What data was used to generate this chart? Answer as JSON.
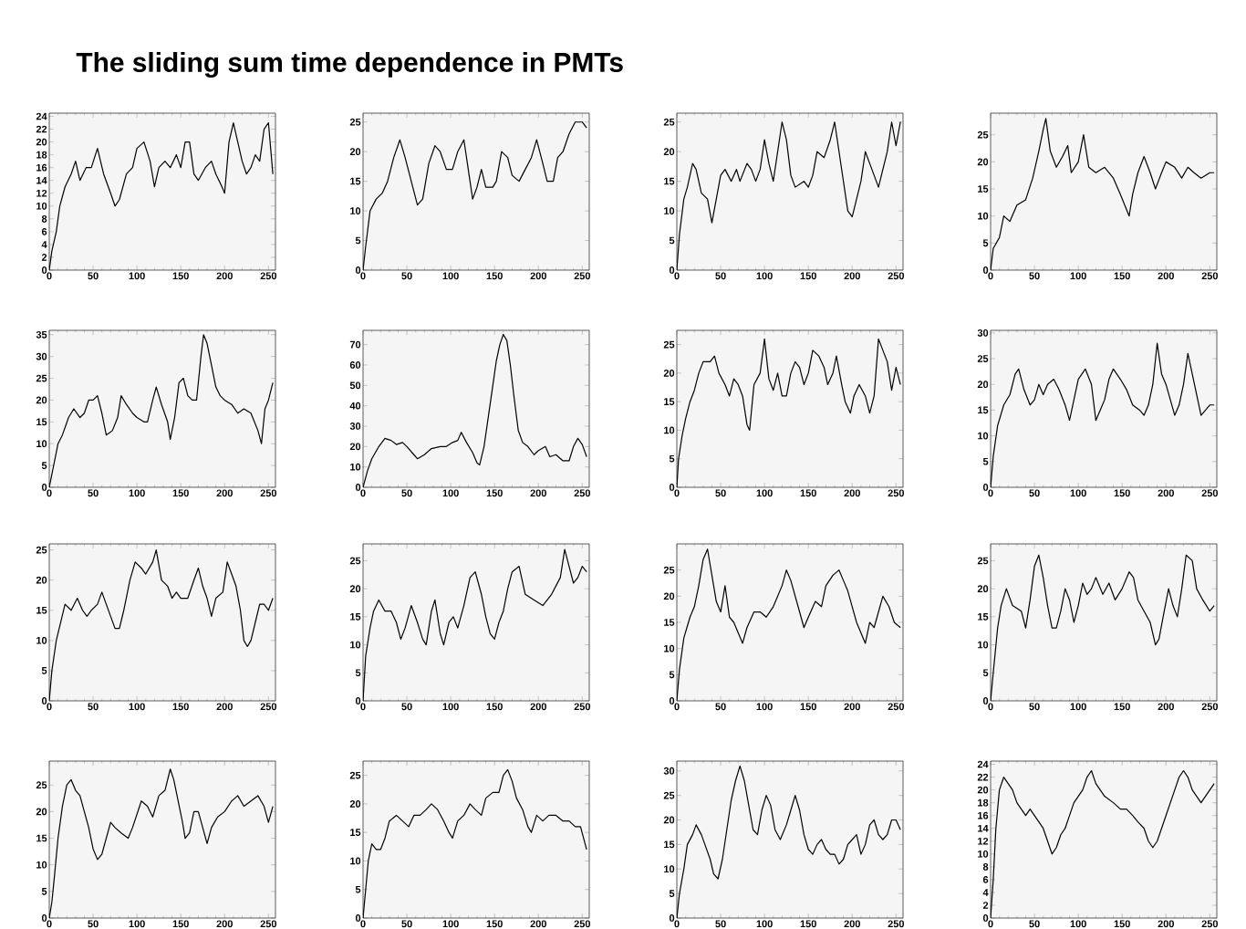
{
  "chart_data": [
    {
      "type": "line",
      "title": "The sliding sum time dependence in  PMTs",
      "color": "#000000",
      "xlim": [
        0,
        258
      ],
      "ylim": [
        0,
        24.5
      ],
      "xticks": [
        0,
        50,
        100,
        150,
        200,
        250
      ],
      "yticks": [
        0,
        2,
        4,
        6,
        8,
        10,
        12,
        14,
        16,
        18,
        20,
        22,
        24
      ],
      "x": [
        0,
        3,
        8,
        12,
        18,
        25,
        30,
        35,
        42,
        48,
        55,
        62,
        70,
        75,
        80,
        88,
        95,
        100,
        108,
        115,
        120,
        125,
        132,
        138,
        145,
        150,
        155,
        160,
        165,
        170,
        178,
        185,
        190,
        197,
        200,
        205,
        210,
        215,
        220,
        225,
        230,
        235,
        240,
        245,
        250,
        255
      ],
      "values": [
        0,
        3,
        6,
        10,
        13,
        15,
        17,
        14,
        16,
        16,
        19,
        15,
        12,
        10,
        11,
        15,
        16,
        19,
        20,
        17,
        13,
        16,
        17,
        16,
        18,
        16,
        20,
        20,
        15,
        14,
        16,
        17,
        15,
        13,
        12,
        20,
        23,
        20,
        17,
        15,
        16,
        18,
        17,
        22,
        23,
        15
      ]
    },
    {
      "type": "line",
      "color": "#000000",
      "xlim": [
        0,
        258
      ],
      "ylim": [
        0,
        26.5
      ],
      "xticks": [
        0,
        50,
        100,
        150,
        200,
        250
      ],
      "yticks": [
        0,
        5,
        10,
        15,
        20,
        25
      ],
      "x": [
        0,
        3,
        8,
        15,
        22,
        28,
        35,
        42,
        48,
        55,
        62,
        68,
        75,
        82,
        88,
        95,
        102,
        108,
        115,
        120,
        125,
        130,
        135,
        140,
        148,
        152,
        158,
        165,
        170,
        178,
        185,
        192,
        198,
        205,
        210,
        217,
        222,
        228,
        235,
        242,
        250,
        255
      ],
      "values": [
        0,
        4,
        10,
        12,
        13,
        15,
        19,
        22,
        19,
        15,
        11,
        12,
        18,
        21,
        20,
        17,
        17,
        20,
        22,
        17,
        12,
        14,
        17,
        14,
        14,
        15,
        20,
        19,
        16,
        15,
        17,
        19,
        22,
        18,
        15,
        15,
        19,
        20,
        23,
        25,
        25,
        24
      ]
    },
    {
      "type": "line",
      "color": "#000000",
      "xlim": [
        0,
        258
      ],
      "ylim": [
        0,
        26.5
      ],
      "xticks": [
        0,
        50,
        100,
        150,
        200,
        250
      ],
      "yticks": [
        0,
        5,
        10,
        15,
        20,
        25
      ],
      "x": [
        0,
        3,
        8,
        12,
        18,
        22,
        28,
        35,
        40,
        45,
        50,
        55,
        62,
        68,
        72,
        80,
        85,
        90,
        95,
        100,
        105,
        110,
        115,
        120,
        125,
        130,
        135,
        145,
        150,
        155,
        160,
        168,
        175,
        180,
        185,
        190,
        195,
        200,
        205,
        210,
        215,
        220,
        225,
        230,
        235,
        240,
        245,
        250,
        255
      ],
      "values": [
        0,
        6,
        12,
        14,
        18,
        17,
        13,
        12,
        8,
        12,
        16,
        17,
        15,
        17,
        15,
        18,
        17,
        15,
        17,
        22,
        18,
        15,
        20,
        25,
        22,
        16,
        14,
        15,
        14,
        16,
        20,
        19,
        22,
        25,
        20,
        15,
        10,
        9,
        12,
        15,
        20,
        18,
        16,
        14,
        17,
        20,
        25,
        21,
        25
      ]
    },
    {
      "type": "line",
      "color": "#000000",
      "xlim": [
        0,
        258
      ],
      "ylim": [
        0,
        29
      ],
      "xticks": [
        0,
        50,
        100,
        150,
        200,
        250
      ],
      "yticks": [
        0,
        5,
        10,
        15,
        20,
        25
      ],
      "x": [
        0,
        3,
        10,
        15,
        22,
        30,
        40,
        48,
        55,
        60,
        63,
        68,
        75,
        82,
        88,
        92,
        100,
        106,
        112,
        120,
        130,
        140,
        148,
        153,
        158,
        162,
        168,
        175,
        182,
        188,
        195,
        200,
        210,
        218,
        225,
        232,
        240,
        250,
        255
      ],
      "values": [
        0,
        4,
        6,
        10,
        9,
        12,
        13,
        17,
        22,
        26,
        28,
        22,
        19,
        21,
        23,
        18,
        20,
        25,
        19,
        18,
        19,
        17,
        14,
        12,
        10,
        14,
        18,
        21,
        18,
        15,
        18,
        20,
        19,
        17,
        19,
        18,
        17,
        18,
        18
      ]
    },
    {
      "type": "line",
      "color": "#000000",
      "xlim": [
        0,
        258
      ],
      "ylim": [
        0,
        36
      ],
      "xticks": [
        0,
        50,
        100,
        150,
        200,
        250
      ],
      "yticks": [
        0,
        5,
        10,
        15,
        20,
        25,
        30,
        35
      ],
      "x": [
        0,
        5,
        10,
        15,
        22,
        28,
        35,
        40,
        45,
        50,
        55,
        60,
        65,
        72,
        78,
        82,
        88,
        95,
        100,
        108,
        112,
        118,
        122,
        128,
        135,
        138,
        143,
        148,
        153,
        158,
        163,
        168,
        173,
        176,
        180,
        185,
        190,
        195,
        200,
        208,
        215,
        222,
        230,
        238,
        242,
        246,
        250,
        255
      ],
      "values": [
        0,
        5,
        10,
        12,
        16,
        18,
        16,
        17,
        20,
        20,
        21,
        17,
        12,
        13,
        16,
        21,
        19,
        17,
        16,
        15,
        15,
        20,
        23,
        19,
        15,
        11,
        16,
        24,
        25,
        21,
        20,
        20,
        30,
        35,
        33,
        28,
        23,
        21,
        20,
        19,
        17,
        18,
        17,
        13,
        10,
        18,
        20,
        24
      ]
    },
    {
      "type": "line",
      "color": "#000000",
      "xlim": [
        0,
        258
      ],
      "ylim": [
        0,
        77
      ],
      "xticks": [
        0,
        50,
        100,
        150,
        200,
        250
      ],
      "yticks": [
        0,
        10,
        20,
        30,
        40,
        50,
        60,
        70
      ],
      "x": [
        0,
        5,
        10,
        18,
        25,
        32,
        38,
        45,
        50,
        58,
        62,
        70,
        78,
        88,
        95,
        102,
        108,
        112,
        118,
        125,
        130,
        133,
        138,
        143,
        148,
        152,
        156,
        160,
        164,
        168,
        172,
        177,
        182,
        188,
        195,
        200,
        208,
        213,
        220,
        228,
        235,
        240,
        245,
        250,
        255
      ],
      "values": [
        0,
        8,
        14,
        20,
        24,
        23,
        21,
        22,
        20,
        16,
        14,
        16,
        19,
        20,
        20,
        22,
        23,
        27,
        22,
        17,
        12,
        11,
        20,
        35,
        50,
        62,
        70,
        75,
        72,
        60,
        45,
        28,
        22,
        20,
        16,
        18,
        20,
        15,
        16,
        13,
        13,
        20,
        24,
        21,
        15
      ]
    },
    {
      "type": "line",
      "color": "#000000",
      "xlim": [
        0,
        258
      ],
      "ylim": [
        0,
        27.5
      ],
      "xticks": [
        0,
        50,
        100,
        150,
        200,
        250
      ],
      "yticks": [
        0,
        5,
        10,
        15,
        20,
        25
      ],
      "x": [
        0,
        2,
        6,
        10,
        15,
        20,
        25,
        30,
        38,
        43,
        48,
        55,
        60,
        65,
        70,
        75,
        80,
        83,
        88,
        95,
        100,
        105,
        110,
        115,
        120,
        125,
        130,
        135,
        140,
        145,
        150,
        155,
        162,
        168,
        172,
        178,
        182,
        188,
        192,
        198,
        202,
        208,
        215,
        220,
        225,
        230,
        235,
        240,
        245,
        250,
        255
      ],
      "values": [
        0,
        5,
        9,
        12,
        15,
        17,
        20,
        22,
        22,
        23,
        20,
        18,
        16,
        19,
        18,
        16,
        11,
        10,
        18,
        20,
        26,
        19,
        17,
        20,
        16,
        16,
        20,
        22,
        21,
        18,
        20,
        24,
        23,
        21,
        18,
        20,
        23,
        18,
        15,
        13,
        16,
        18,
        16,
        13,
        16,
        26,
        24,
        22,
        17,
        21,
        18
      ]
    },
    {
      "type": "line",
      "color": "#000000",
      "xlim": [
        0,
        258
      ],
      "ylim": [
        0,
        30.5
      ],
      "xticks": [
        0,
        50,
        100,
        150,
        200,
        250
      ],
      "yticks": [
        0,
        5,
        10,
        15,
        20,
        25,
        30
      ],
      "x": [
        0,
        3,
        8,
        15,
        22,
        28,
        32,
        38,
        45,
        50,
        55,
        60,
        65,
        72,
        78,
        85,
        90,
        95,
        100,
        108,
        115,
        120,
        125,
        130,
        135,
        140,
        148,
        155,
        162,
        170,
        175,
        180,
        185,
        190,
        195,
        200,
        205,
        210,
        215,
        220,
        225,
        230,
        240,
        250,
        255
      ],
      "values": [
        0,
        6,
        12,
        16,
        18,
        22,
        23,
        19,
        16,
        17,
        20,
        18,
        20,
        21,
        19,
        16,
        13,
        17,
        21,
        23,
        20,
        13,
        15,
        17,
        21,
        23,
        21,
        19,
        16,
        15,
        14,
        16,
        20,
        28,
        22,
        20,
        17,
        14,
        16,
        20,
        26,
        22,
        14,
        16,
        16
      ]
    },
    {
      "type": "line",
      "color": "#000000",
      "xlim": [
        0,
        258
      ],
      "ylim": [
        0,
        26
      ],
      "xticks": [
        0,
        50,
        100,
        150,
        200,
        250
      ],
      "yticks": [
        0,
        5,
        10,
        15,
        20,
        25
      ],
      "x": [
        0,
        3,
        8,
        13,
        18,
        25,
        32,
        38,
        43,
        48,
        55,
        60,
        65,
        70,
        75,
        80,
        85,
        92,
        98,
        105,
        110,
        118,
        122,
        128,
        135,
        140,
        145,
        150,
        158,
        165,
        170,
        175,
        180,
        185,
        190,
        198,
        203,
        208,
        213,
        218,
        222,
        226,
        230,
        235,
        240,
        245,
        250,
        255
      ],
      "values": [
        0,
        5,
        10,
        13,
        16,
        15,
        17,
        15,
        14,
        15,
        16,
        18,
        16,
        14,
        12,
        12,
        15,
        20,
        23,
        22,
        21,
        23,
        25,
        20,
        19,
        17,
        18,
        17,
        17,
        20,
        22,
        19,
        17,
        14,
        17,
        18,
        23,
        21,
        19,
        15,
        10,
        9,
        10,
        13,
        16,
        16,
        15,
        17
      ]
    },
    {
      "type": "line",
      "color": "#000000",
      "xlim": [
        0,
        258
      ],
      "ylim": [
        0,
        28
      ],
      "xticks": [
        0,
        50,
        100,
        150,
        200,
        250
      ],
      "yticks": [
        0,
        5,
        10,
        15,
        20,
        25
      ],
      "x": [
        0,
        3,
        8,
        12,
        18,
        25,
        32,
        38,
        43,
        48,
        55,
        62,
        68,
        72,
        78,
        82,
        88,
        92,
        98,
        103,
        108,
        115,
        122,
        128,
        135,
        140,
        145,
        150,
        155,
        160,
        165,
        170,
        178,
        185,
        195,
        205,
        215,
        225,
        230,
        235,
        240,
        245,
        250,
        255
      ],
      "values": [
        0,
        8,
        13,
        16,
        18,
        16,
        16,
        14,
        11,
        13,
        17,
        14,
        11,
        10,
        16,
        18,
        12,
        10,
        14,
        15,
        13,
        17,
        22,
        23,
        19,
        15,
        12,
        11,
        14,
        16,
        20,
        23,
        24,
        19,
        18,
        17,
        19,
        22,
        27,
        24,
        21,
        22,
        24,
        23
      ]
    },
    {
      "type": "line",
      "color": "#000000",
      "xlim": [
        0,
        258
      ],
      "ylim": [
        0,
        30
      ],
      "xticks": [
        0,
        50,
        100,
        150,
        200,
        250
      ],
      "yticks": [
        0,
        5,
        10,
        15,
        20,
        25
      ],
      "x": [
        0,
        3,
        8,
        15,
        20,
        25,
        30,
        35,
        40,
        45,
        50,
        55,
        60,
        65,
        70,
        75,
        80,
        88,
        95,
        102,
        110,
        115,
        120,
        125,
        130,
        135,
        140,
        145,
        150,
        158,
        165,
        170,
        178,
        185,
        190,
        195,
        200,
        205,
        210,
        215,
        220,
        225,
        230,
        235,
        242,
        248,
        255
      ],
      "values": [
        0,
        6,
        12,
        16,
        18,
        22,
        27,
        29,
        24,
        19,
        17,
        22,
        16,
        15,
        13,
        11,
        14,
        17,
        17,
        16,
        18,
        20,
        22,
        25,
        23,
        20,
        17,
        14,
        16,
        19,
        18,
        22,
        24,
        25,
        23,
        21,
        18,
        15,
        13,
        11,
        15,
        14,
        17,
        20,
        18,
        15,
        14
      ]
    },
    {
      "type": "line",
      "color": "#000000",
      "xlim": [
        0,
        258
      ],
      "ylim": [
        0,
        28
      ],
      "xticks": [
        0,
        50,
        100,
        150,
        200,
        250
      ],
      "yticks": [
        0,
        5,
        10,
        15,
        20,
        25
      ],
      "x": [
        0,
        3,
        8,
        12,
        18,
        25,
        35,
        40,
        45,
        50,
        55,
        60,
        65,
        70,
        75,
        80,
        85,
        90,
        95,
        100,
        105,
        110,
        115,
        120,
        128,
        135,
        142,
        150,
        158,
        163,
        168,
        175,
        182,
        188,
        192,
        198,
        203,
        208,
        213,
        218,
        223,
        230,
        235,
        242,
        250,
        255
      ],
      "values": [
        0,
        5,
        13,
        17,
        20,
        17,
        16,
        13,
        18,
        24,
        26,
        22,
        17,
        13,
        13,
        16,
        20,
        18,
        14,
        17,
        21,
        19,
        20,
        22,
        19,
        21,
        18,
        20,
        23,
        22,
        18,
        16,
        14,
        10,
        11,
        16,
        20,
        17,
        15,
        20,
        26,
        25,
        20,
        18,
        16,
        17
      ]
    },
    {
      "type": "line",
      "color": "#000000",
      "xlim": [
        0,
        258
      ],
      "ylim": [
        0,
        29.5
      ],
      "xticks": [
        0,
        50,
        100,
        150,
        200,
        250
      ],
      "yticks": [
        0,
        5,
        10,
        15,
        20,
        25
      ],
      "x": [
        0,
        3,
        6,
        10,
        15,
        20,
        25,
        30,
        35,
        40,
        45,
        50,
        55,
        60,
        65,
        70,
        75,
        82,
        90,
        95,
        105,
        112,
        118,
        125,
        132,
        138,
        142,
        147,
        152,
        155,
        160,
        165,
        170,
        175,
        180,
        185,
        192,
        200,
        208,
        215,
        222,
        230,
        238,
        245,
        250,
        255
      ],
      "values": [
        0,
        3,
        8,
        15,
        21,
        25,
        26,
        24,
        23,
        20,
        17,
        13,
        11,
        12,
        15,
        18,
        17,
        16,
        15,
        17,
        22,
        21,
        19,
        23,
        24,
        28,
        26,
        22,
        18,
        15,
        16,
        20,
        20,
        17,
        14,
        17,
        19,
        20,
        22,
        23,
        21,
        22,
        23,
        21,
        18,
        21
      ]
    },
    {
      "type": "line",
      "color": "#000000",
      "xlim": [
        0,
        258
      ],
      "ylim": [
        0,
        27.5
      ],
      "xticks": [
        0,
        50,
        100,
        150,
        200,
        250
      ],
      "yticks": [
        0,
        5,
        10,
        15,
        20,
        25
      ],
      "x": [
        0,
        3,
        6,
        10,
        15,
        20,
        25,
        30,
        38,
        45,
        52,
        58,
        65,
        72,
        78,
        85,
        92,
        98,
        102,
        108,
        115,
        122,
        128,
        135,
        140,
        148,
        155,
        160,
        165,
        170,
        175,
        182,
        188,
        192,
        198,
        205,
        212,
        220,
        228,
        235,
        242,
        248,
        255
      ],
      "values": [
        0,
        5,
        10,
        13,
        12,
        12,
        14,
        17,
        18,
        17,
        16,
        18,
        18,
        19,
        20,
        19,
        17,
        15,
        14,
        17,
        18,
        20,
        19,
        18,
        21,
        22,
        22,
        25,
        26,
        24,
        21,
        19,
        16,
        15,
        18,
        17,
        18,
        18,
        17,
        17,
        16,
        16,
        12
      ]
    },
    {
      "type": "line",
      "color": "#000000",
      "xlim": [
        0,
        258
      ],
      "ylim": [
        0,
        32
      ],
      "xticks": [
        0,
        50,
        100,
        150,
        200,
        250
      ],
      "yticks": [
        0,
        5,
        10,
        15,
        20,
        25,
        30
      ],
      "x": [
        0,
        3,
        8,
        12,
        18,
        22,
        28,
        32,
        38,
        42,
        47,
        52,
        57,
        62,
        67,
        72,
        77,
        82,
        87,
        92,
        97,
        102,
        107,
        112,
        118,
        125,
        130,
        135,
        140,
        145,
        150,
        155,
        160,
        165,
        170,
        175,
        180,
        185,
        190,
        195,
        200,
        205,
        210,
        215,
        220,
        225,
        230,
        235,
        240,
        245,
        250,
        255
      ],
      "values": [
        0,
        5,
        10,
        15,
        17,
        19,
        17,
        15,
        12,
        9,
        8,
        12,
        18,
        24,
        28,
        31,
        28,
        23,
        18,
        17,
        22,
        25,
        23,
        18,
        16,
        19,
        22,
        25,
        22,
        17,
        14,
        13,
        15,
        16,
        14,
        13,
        13,
        11,
        12,
        15,
        16,
        17,
        13,
        15,
        19,
        20,
        17,
        16,
        17,
        20,
        20,
        18
      ]
    },
    {
      "type": "line",
      "color": "#000000",
      "xlim": [
        0,
        258
      ],
      "ylim": [
        0,
        24.5
      ],
      "xticks": [
        0,
        50,
        100,
        150,
        200,
        250
      ],
      "yticks": [
        0,
        2,
        4,
        6,
        8,
        10,
        12,
        14,
        16,
        18,
        20,
        22,
        24
      ],
      "x": [
        0,
        3,
        6,
        10,
        15,
        20,
        25,
        30,
        35,
        40,
        45,
        50,
        55,
        60,
        65,
        70,
        75,
        80,
        85,
        90,
        95,
        100,
        105,
        110,
        115,
        120,
        125,
        130,
        140,
        148,
        155,
        162,
        168,
        175,
        180,
        185,
        190,
        195,
        200,
        205,
        210,
        215,
        220,
        225,
        230,
        240,
        250,
        255
      ],
      "values": [
        0,
        6,
        14,
        20,
        22,
        21,
        20,
        18,
        17,
        16,
        17,
        16,
        15,
        14,
        12,
        10,
        11,
        13,
        14,
        16,
        18,
        19,
        20,
        22,
        23,
        21,
        20,
        19,
        18,
        17,
        17,
        16,
        15,
        14,
        12,
        11,
        12,
        14,
        16,
        18,
        20,
        22,
        23,
        22,
        20,
        18,
        20,
        21
      ]
    }
  ]
}
